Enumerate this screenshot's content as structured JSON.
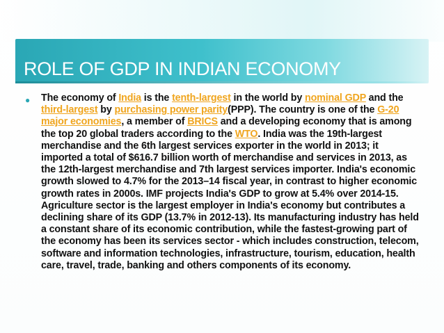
{
  "slide": {
    "title": "ROLE OF GDP IN INDIAN ECONOMY",
    "accent_color": "#3fc0cc",
    "link_color": "#f0a51e",
    "bullet_icon": "filled-circle",
    "paragraph": {
      "t1": "The economy of ",
      "l1": "India",
      "t2": " is the ",
      "l2": "tenth-largest",
      "t3": " in the world by ",
      "l3": "nominal GDP",
      "t4": " and the ",
      "l4": "third-largest",
      "t5": " by ",
      "l5": "purchasing power parity",
      "t6": "(PPP). The country is one of the ",
      "l6": "G-20 major economies",
      "t7": ", a member of ",
      "l7": "BRICS",
      "t8": " and a developing economy that is among the top 20 global traders according to the ",
      "l8": "WTO",
      "t9": ". India was the 19th-largest merchandise and the 6th largest services exporter in the world in 2013; it imported a total of $616.7 billion worth of merchandise and services in 2013, as the 12th-largest merchandise and 7th largest services importer. India's economic growth slowed to 4.7% for the 2013–14 fiscal year, in contrast to higher economic growth rates in 2000s. IMF projects India's GDP to grow at 5.4% over 2014-15. Agriculture sector is the largest employer in India's economy but contributes a declining share of its GDP (13.7% in 2012-13). Its manufacturing industry has held a constant share of its economic contribution, while the fastest-growing part of the economy has been its services sector - which includes construction, telecom, software and information technologies, infrastructure, tourism, education, health care, travel, trade, banking and others components of its economy."
    }
  }
}
